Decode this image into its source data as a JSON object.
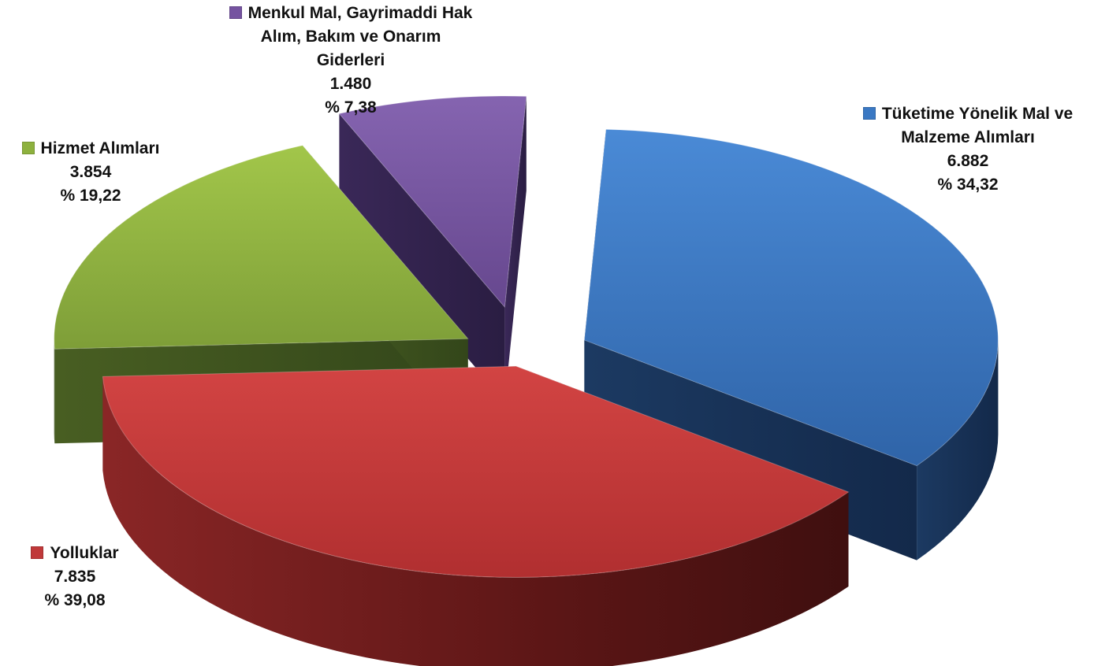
{
  "chart_data": {
    "type": "pie",
    "slices": [
      {
        "name": "Tüketime Yönelik Mal ve Malzeme Alımları",
        "label_lines": [
          "Tüketime Yönelik Mal ve",
          "Malzeme Alımları"
        ],
        "value": 6882,
        "value_label": "6.882",
        "percent": 34.32,
        "percent_label": "% 34,32",
        "color": "#3a78c3"
      },
      {
        "name": "Yolluklar",
        "label_lines": [
          "Yolluklar"
        ],
        "value": 7835,
        "value_label": "7.835",
        "percent": 39.08,
        "percent_label": "% 39,08",
        "color": "#c0393a"
      },
      {
        "name": "Hizmet Alımları",
        "label_lines": [
          "Hizmet Alımları"
        ],
        "value": 3854,
        "value_label": "3.854",
        "percent": 19.22,
        "percent_label": "% 19,22",
        "color": "#8db13e"
      },
      {
        "name": "Menkul Mal, Gayrimaddi Hak Alım, Bakım ve Onarım Giderleri",
        "label_lines": [
          "Menkul Mal, Gayrimaddi Hak",
          "Alım, Bakım ve Onarım",
          "Giderleri"
        ],
        "value": 1480,
        "value_label": "1.480",
        "percent": 7.38,
        "percent_label": "% 7,38",
        "color": "#7553a0"
      }
    ],
    "exploded": true,
    "three_d": true
  }
}
